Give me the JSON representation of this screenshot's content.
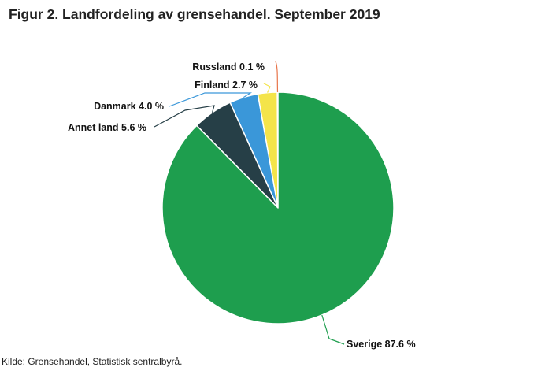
{
  "title": "Figur 2. Landfordeling av grensehandel. September 2019",
  "source": "Kilde: Grensehandel, Statistisk sentralbyrå.",
  "chart_data": {
    "type": "pie",
    "title": "Figur 2. Landfordeling av grensehandel. September 2019",
    "unit": "%",
    "slices": [
      {
        "label": "Russland 0.1 %",
        "value": 0.1,
        "color": "#e8754a"
      },
      {
        "label": "Finland 2.7 %",
        "value": 2.7,
        "color": "#f4e44a"
      },
      {
        "label": "Danmark 4.0 %",
        "value": 4.0,
        "color": "#3a97d9"
      },
      {
        "label": "Annet land 5.6 %",
        "value": 5.6,
        "color": "#263f47"
      },
      {
        "label": "Sverige 87.6 %",
        "value": 87.6,
        "color": "#1e9e4e"
      }
    ]
  }
}
